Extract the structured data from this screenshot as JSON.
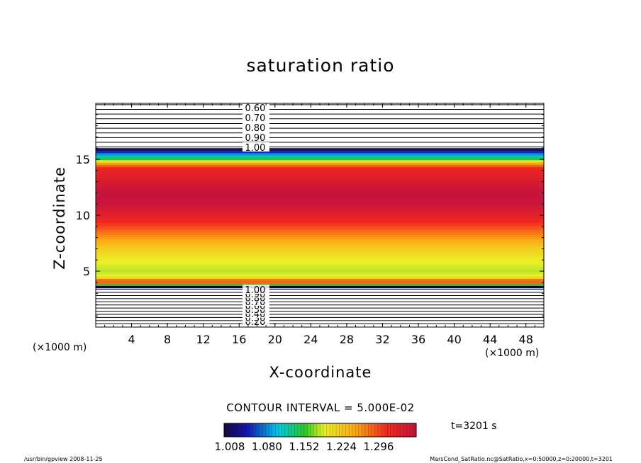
{
  "chart_data": {
    "type": "heatmap",
    "title": "saturation ratio",
    "xlabel": "X-coordinate",
    "ylabel": "Z-coordinate",
    "x_unit_left": "(×1000 m)",
    "x_unit_right": "(×1000 m)",
    "xlim": [
      0,
      50
    ],
    "ylim": [
      0,
      20
    ],
    "x_ticks": [
      4,
      8,
      12,
      16,
      20,
      24,
      28,
      32,
      36,
      40,
      44,
      48
    ],
    "y_ticks": [
      5,
      10,
      15
    ],
    "vertical_profile": [
      {
        "z": 3.5,
        "value": 1.008
      },
      {
        "z": 3.7,
        "value": 1.05
      },
      {
        "z": 3.9,
        "value": 1.18
      },
      {
        "z": 4.1,
        "value": 1.26
      },
      {
        "z": 4.5,
        "value": 1.16
      },
      {
        "z": 5.0,
        "value": 1.15
      },
      {
        "z": 6.0,
        "value": 1.16
      },
      {
        "z": 7.0,
        "value": 1.18
      },
      {
        "z": 8.0,
        "value": 1.21
      },
      {
        "z": 9.0,
        "value": 1.24
      },
      {
        "z": 10.0,
        "value": 1.27
      },
      {
        "z": 11.0,
        "value": 1.29
      },
      {
        "z": 11.8,
        "value": 1.3
      },
      {
        "z": 12.5,
        "value": 1.29
      },
      {
        "z": 13.5,
        "value": 1.27
      },
      {
        "z": 14.2,
        "value": 1.26
      },
      {
        "z": 14.7,
        "value": 1.2
      },
      {
        "z": 15.0,
        "value": 1.13
      },
      {
        "z": 15.3,
        "value": 1.1
      },
      {
        "z": 15.6,
        "value": 1.06
      },
      {
        "z": 16.0,
        "value": 1.008
      }
    ],
    "upper_contour_labels": [
      "0.60",
      "0.70",
      "0.80",
      "0.90",
      "1.00"
    ],
    "lower_contour_labels": [
      "0.20",
      "0.30",
      "0.40",
      "0.50",
      "0.60",
      "0.70",
      "0.80",
      "0.90",
      "1.00"
    ],
    "colorbar": {
      "min": 1.008,
      "max": 1.296,
      "tick_labels": [
        "1.008",
        "1.080",
        "1.152",
        "1.224",
        "1.296"
      ]
    },
    "contour_interval_text": "CONTOUR INTERVAL = 5.000E-02",
    "time_text": "t=3201 s"
  },
  "footer": {
    "left": "/usr/bin/gpview   2008-11-25",
    "right": "MarsCond_SatRatio.nc@SatRatio,x=0:50000,z=0:20000,t=3201"
  }
}
